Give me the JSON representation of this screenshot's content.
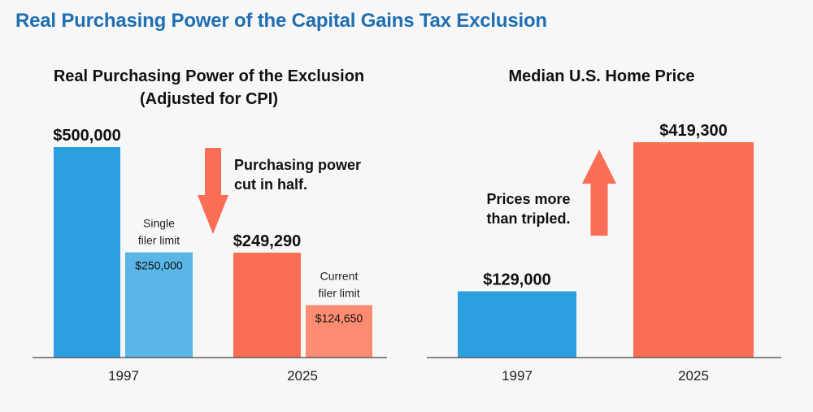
{
  "title": "Real Purchasing Power of the Capital Gains Tax Exclusion",
  "colors": {
    "title": "#1f6fb2",
    "blue": "#2c9fe0",
    "blue_light": "#5ab6e6",
    "coral": "#fa6e55",
    "coral_light": "#fb8c71"
  },
  "chart_data": [
    {
      "type": "bar",
      "title_lines": [
        "Real Purchasing Power of the Exclusion",
        "(Adjusted for CPI)"
      ],
      "categories": [
        "1997",
        "2025"
      ],
      "bars": [
        {
          "category": "1997",
          "value": 500000,
          "label": "$500,000",
          "note_lines": [],
          "style": "primary",
          "color": "#2c9fe0"
        },
        {
          "category": "1997",
          "value": 250000,
          "label": "$250,000",
          "note_lines": [
            "Single",
            "filer limit"
          ],
          "style": "secondary",
          "color": "#5ab6e6"
        },
        {
          "category": "2025",
          "value": 249290,
          "label": "$249,290",
          "note_lines": [],
          "style": "primary",
          "color": "#fa6e55"
        },
        {
          "category": "2025",
          "value": 124650,
          "label": "$124,650",
          "note_lines": [
            "Current",
            "filer limit"
          ],
          "style": "secondary",
          "color": "#fb8c71"
        }
      ],
      "callout_lines": [
        "Purchasing power",
        "cut in half."
      ],
      "callout_arrow": "down",
      "ylim": [
        0,
        500000
      ],
      "grid": false,
      "xlabel": "",
      "ylabel": ""
    },
    {
      "type": "bar",
      "title_lines": [
        "Median U.S. Home Price"
      ],
      "categories": [
        "1997",
        "2025"
      ],
      "bars": [
        {
          "category": "1997",
          "value": 129000,
          "label": "$129,000",
          "note_lines": [],
          "style": "primary",
          "color": "#2c9fe0"
        },
        {
          "category": "2025",
          "value": 419300,
          "label": "$419,300",
          "note_lines": [],
          "style": "primary",
          "color": "#fa6e55"
        }
      ],
      "callout_lines": [
        "Prices more",
        "than tripled."
      ],
      "callout_arrow": "up",
      "ylim": [
        0,
        419300
      ],
      "grid": false,
      "xlabel": "",
      "ylabel": ""
    }
  ]
}
